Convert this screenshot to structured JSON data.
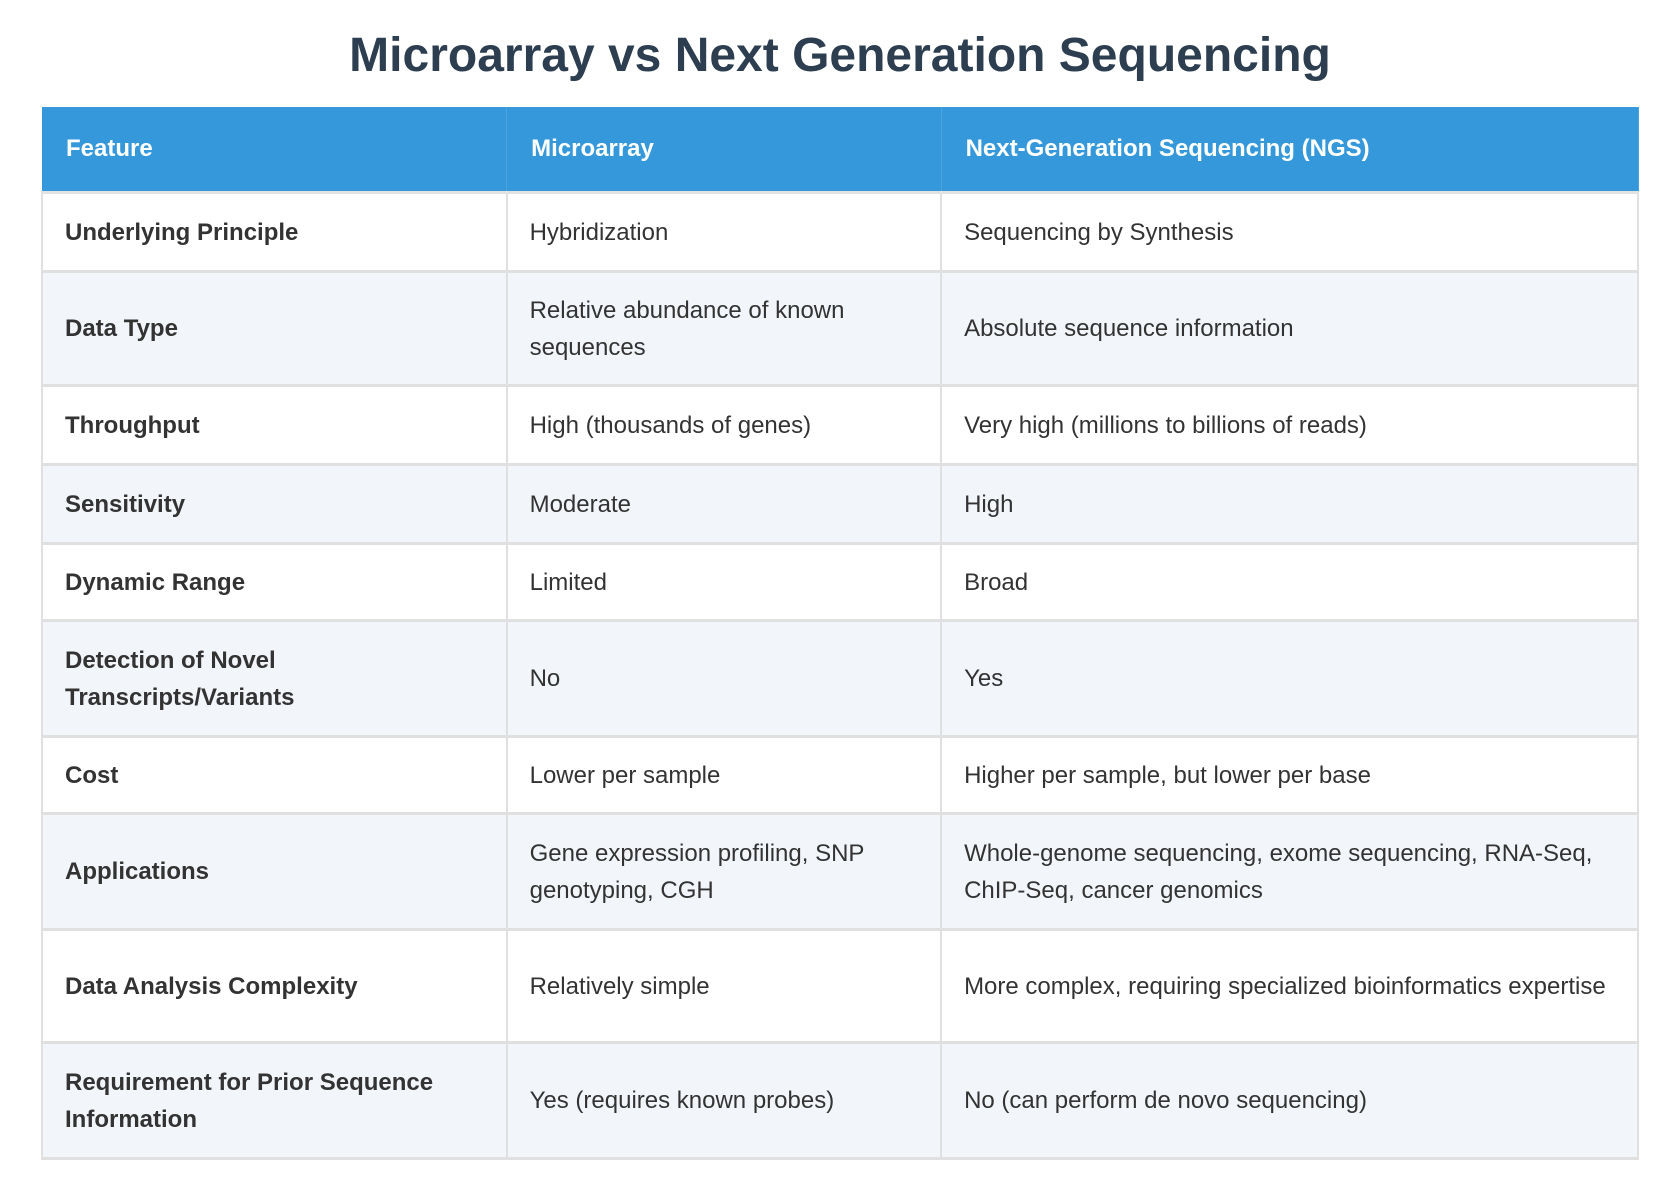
{
  "title": "Microarray vs Next Generation Sequencing",
  "colors": {
    "header_bg": "#3498db",
    "title": "#2c3e50",
    "alt_row": "#f2f5fa"
  },
  "headers": [
    "Feature",
    "Microarray",
    "Next-Generation Sequencing (NGS)"
  ],
  "rows": [
    {
      "feature": "Underlying Principle",
      "microarray": "Hybridization",
      "ngs": "Sequencing by Synthesis"
    },
    {
      "feature": "Data Type",
      "microarray": "Relative abundance of known sequences",
      "ngs": "Absolute sequence information"
    },
    {
      "feature": "Throughput",
      "microarray": "High (thousands of genes)",
      "ngs": "Very high (millions to billions of reads)"
    },
    {
      "feature": "Sensitivity",
      "microarray": "Moderate",
      "ngs": "High"
    },
    {
      "feature": "Dynamic Range",
      "microarray": "Limited",
      "ngs": "Broad"
    },
    {
      "feature": "Detection of Novel Transcripts/Variants",
      "microarray": "No",
      "ngs": "Yes"
    },
    {
      "feature": "Cost",
      "microarray": "Lower per sample",
      "ngs": "Higher per sample, but lower per base"
    },
    {
      "feature": "Applications",
      "microarray": "Gene expression profiling, SNP genotyping, CGH",
      "ngs": "Whole-genome sequencing, exome sequencing, RNA-Seq, ChIP-Seq, cancer genomics"
    },
    {
      "feature": "Data Analysis Complexity",
      "microarray": "Relatively simple",
      "ngs": "More complex, requiring specialized bioinformatics expertise"
    },
    {
      "feature": "Requirement for Prior Sequence Information",
      "microarray": "Yes (requires known probes)",
      "ngs": "No (can perform de novo sequencing)"
    }
  ]
}
